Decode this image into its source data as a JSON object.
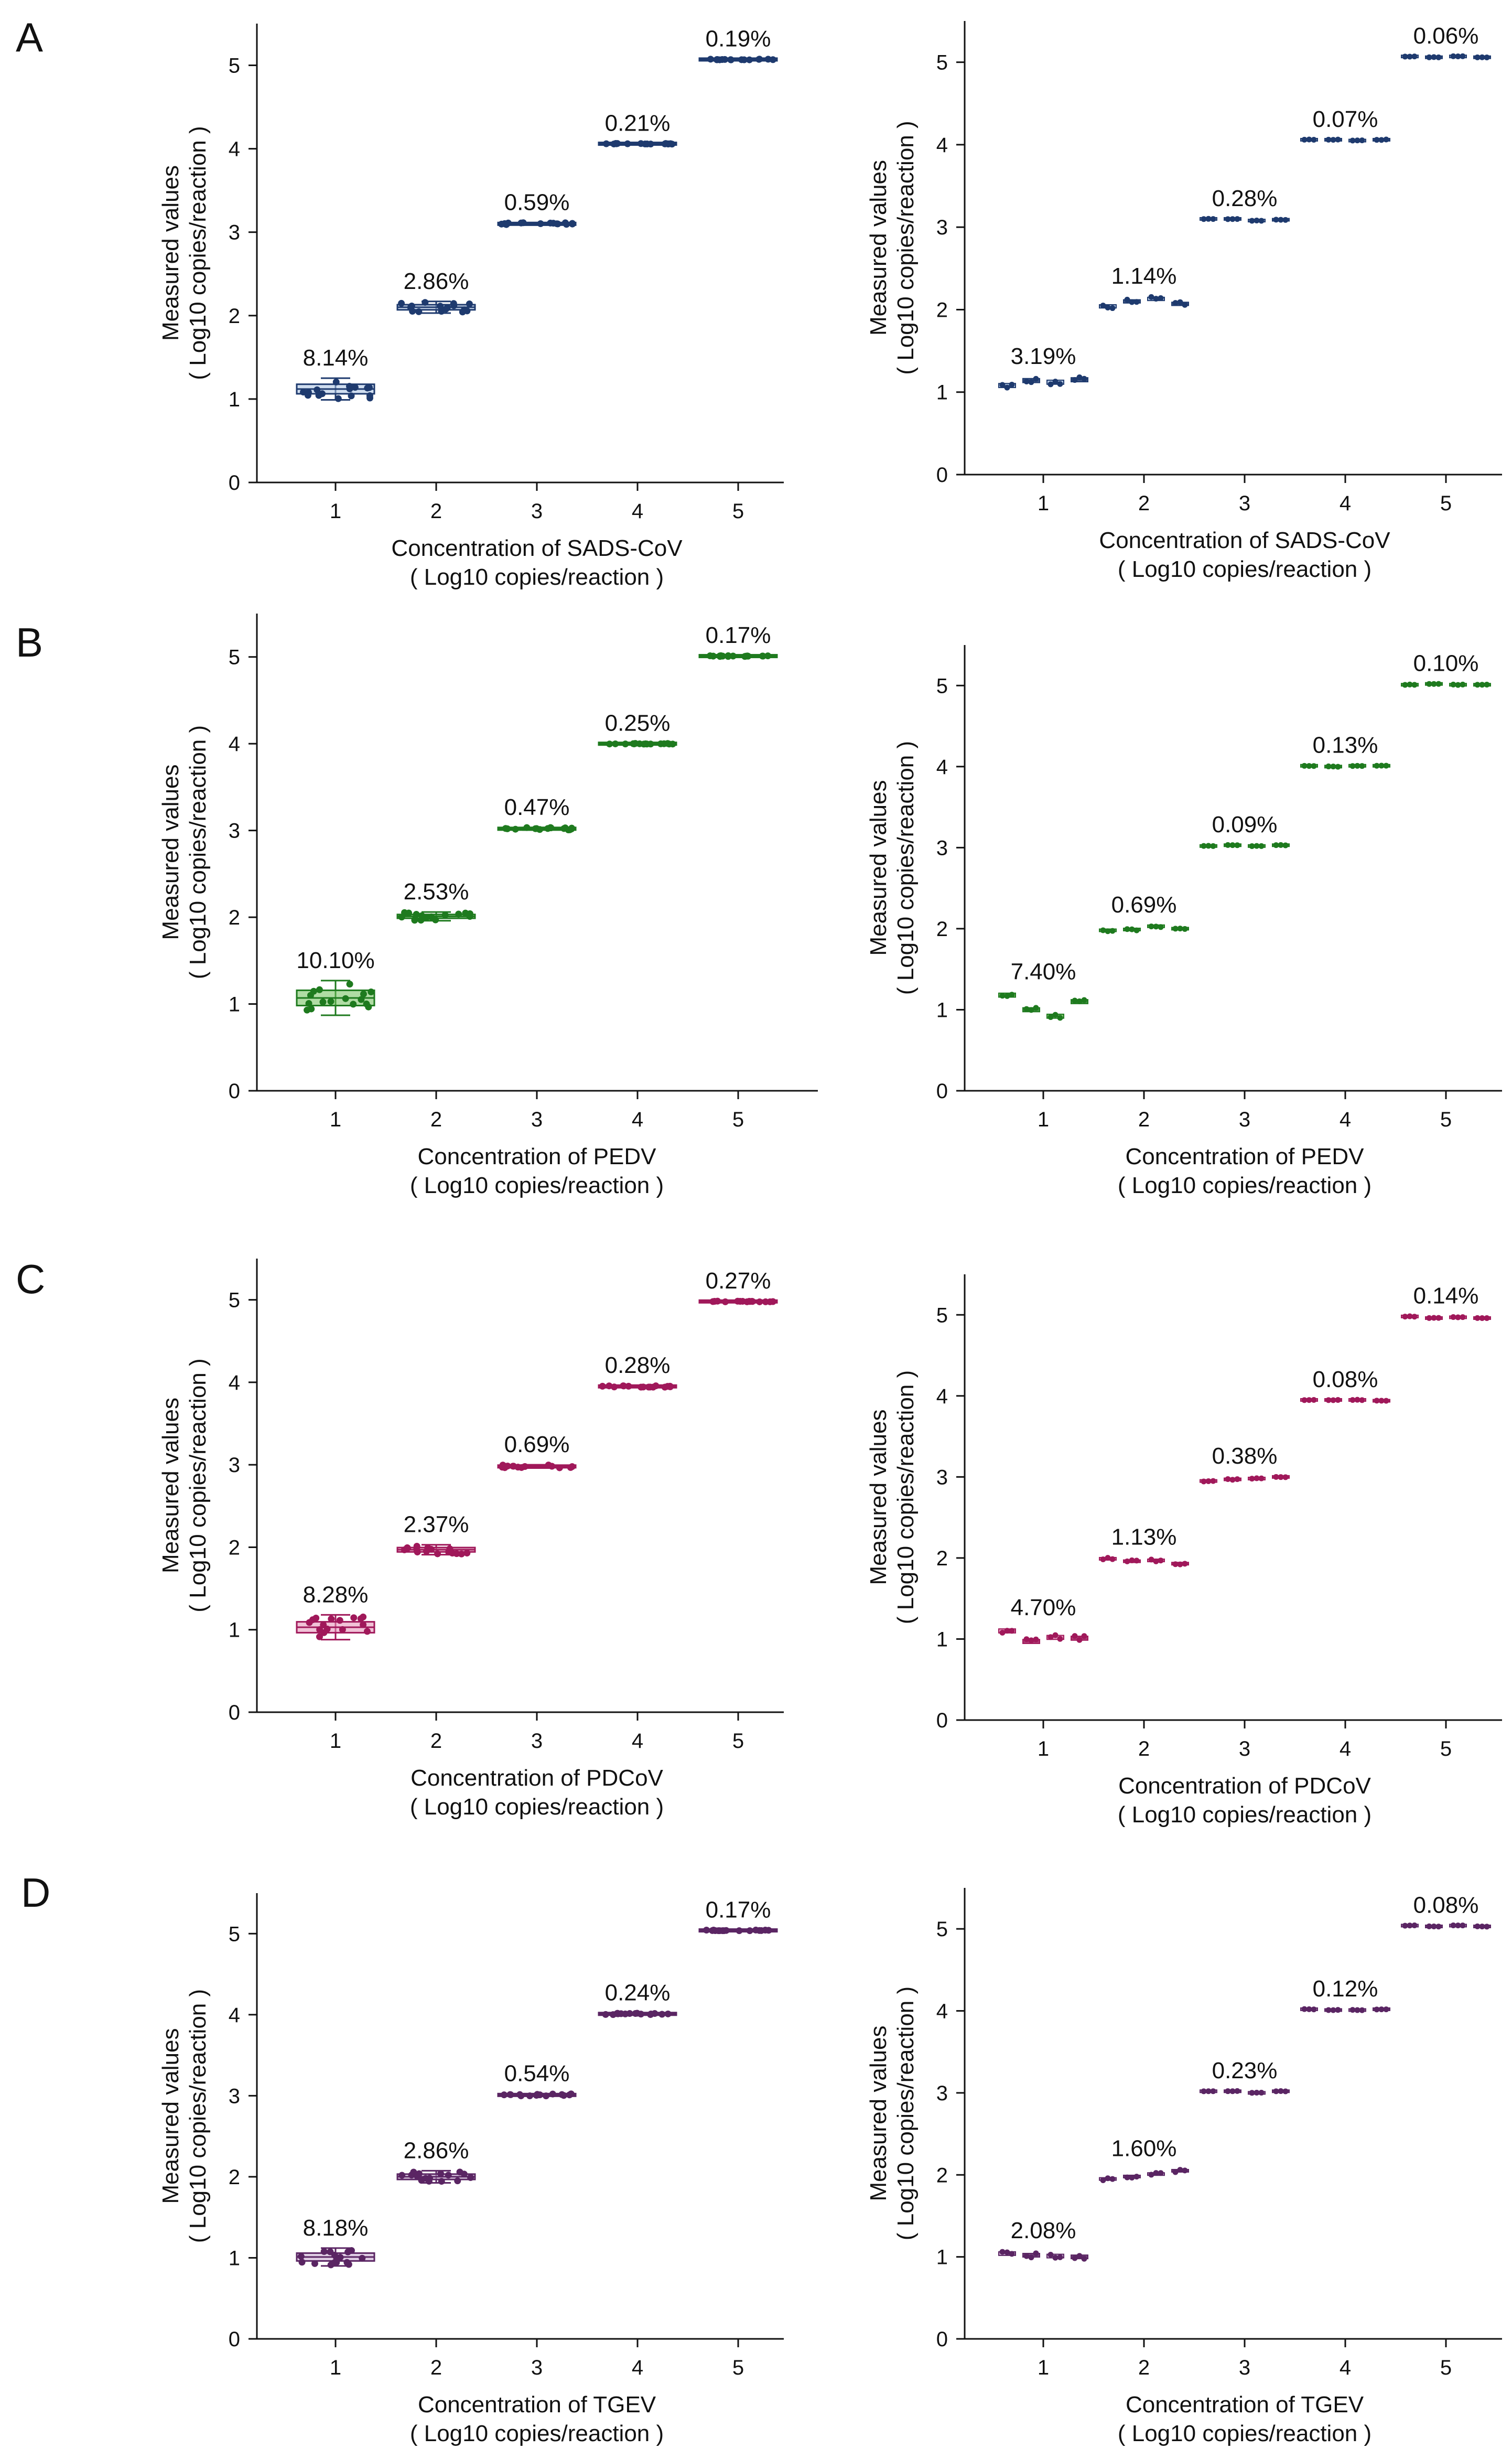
{
  "panel_letters": [
    "A",
    "B",
    "C",
    "D"
  ],
  "colors": {
    "sads": "#1e3a6e",
    "sads_light": "#a9c2e3",
    "pedv": "#1e7a1e",
    "pedv_light": "#6fbf5a",
    "pdcov": "#a0185a",
    "pdcov_light": "#e58fb7",
    "tgev": "#5a2563",
    "tgev_light": "#c6a6cf"
  },
  "chart_data": [
    {
      "id": "A-left",
      "type": "scatter",
      "panel": "A",
      "side": "left",
      "style": "intra",
      "virus": "sads",
      "x": [
        1,
        2,
        3,
        4,
        5
      ],
      "y_means": [
        1.12,
        2.1,
        3.1,
        4.06,
        5.07
      ],
      "spread": [
        0.26,
        0.14,
        0.03,
        0.01,
        0.01
      ],
      "cv_labels": [
        "8.14%",
        "2.86%",
        "0.59%",
        "0.21%",
        "0.19%"
      ],
      "ylim": [
        0,
        5.5
      ],
      "yticks": [
        0,
        1,
        2,
        3,
        4,
        5
      ],
      "xticks": [
        1,
        2,
        3,
        4,
        5
      ],
      "ylabel": [
        "Measured values",
        "( Log10 copies/reaction )"
      ],
      "xlabel": [
        "Concentration of SADS-CoV",
        "( Log10 copies/reaction )"
      ]
    },
    {
      "id": "A-right",
      "type": "scatter",
      "panel": "A",
      "side": "right",
      "style": "inter",
      "virus": "sads",
      "x": [
        1,
        2,
        3,
        4,
        5
      ],
      "group_means": [
        [
          1.08,
          1.14,
          1.12,
          1.15
        ],
        [
          2.04,
          2.1,
          2.13,
          2.07
        ],
        [
          3.1,
          3.1,
          3.08,
          3.09
        ],
        [
          4.06,
          4.06,
          4.05,
          4.06
        ],
        [
          5.07,
          5.06,
          5.07,
          5.06
        ]
      ],
      "spread": [
        0.1,
        0.08,
        0.01,
        0.01,
        0.01
      ],
      "cv_labels": [
        "3.19%",
        "1.14%",
        "0.28%",
        "0.07%",
        "0.06%"
      ],
      "ylim": [
        0,
        5.5
      ],
      "yticks": [
        0,
        1,
        2,
        3,
        4,
        5
      ],
      "xticks": [
        1,
        2,
        3,
        4,
        5
      ],
      "ylabel": [
        "Measured values",
        "( Log10 copies/reaction )"
      ],
      "xlabel": [
        "Concentration of SADS-CoV",
        "( Log10 copies/reaction )"
      ]
    },
    {
      "id": "B-left",
      "type": "scatter",
      "panel": "B",
      "side": "left",
      "style": "intra",
      "virus": "pedv",
      "x": [
        1,
        2,
        3,
        4,
        5
      ],
      "y_means": [
        1.07,
        2.01,
        3.02,
        4.0,
        5.01
      ],
      "spread": [
        0.4,
        0.1,
        0.03,
        0.01,
        0.01
      ],
      "cv_labels": [
        "10.10%",
        "2.53%",
        "0.47%",
        "0.25%",
        "0.17%"
      ],
      "ylim": [
        0,
        5.5
      ],
      "yticks": [
        0,
        1,
        2,
        3,
        4,
        5
      ],
      "xticks": [
        1,
        2,
        3,
        4,
        5
      ],
      "ylabel": [
        "Measured values",
        "( Log10 copies/reaction )"
      ],
      "xlabel": [
        "Concentration of PEDV",
        "( Log10 copies/reaction )"
      ]
    },
    {
      "id": "B-right",
      "type": "scatter",
      "panel": "B",
      "side": "right",
      "style": "inter",
      "virus": "pedv",
      "x": [
        1,
        2,
        3,
        4,
        5
      ],
      "group_means": [
        [
          1.18,
          1.0,
          0.92,
          1.1
        ],
        [
          1.98,
          1.99,
          2.03,
          2.0
        ],
        [
          3.02,
          3.03,
          3.02,
          3.03
        ],
        [
          4.01,
          4.0,
          4.01,
          4.01
        ],
        [
          5.01,
          5.02,
          5.01,
          5.01
        ]
      ],
      "spread": [
        0.1,
        0.04,
        0.01,
        0.01,
        0.01
      ],
      "cv_labels": [
        "7.40%",
        "0.69%",
        "0.09%",
        "0.13%",
        "0.10%"
      ],
      "ylim": [
        0,
        5.5
      ],
      "yticks": [
        0,
        1,
        2,
        3,
        4,
        5
      ],
      "xticks": [
        1,
        2,
        3,
        4,
        5
      ],
      "ylabel": [
        "Measured values",
        "( Log10 copies/reaction )"
      ],
      "xlabel": [
        "Concentration of PEDV",
        "( Log10 copies/reaction )"
      ]
    },
    {
      "id": "C-left",
      "type": "scatter",
      "panel": "C",
      "side": "left",
      "style": "intra",
      "virus": "pdcov",
      "x": [
        1,
        2,
        3,
        4,
        5
      ],
      "y_means": [
        1.03,
        1.97,
        2.98,
        3.95,
        4.98
      ],
      "spread": [
        0.3,
        0.12,
        0.04,
        0.02,
        0.01
      ],
      "cv_labels": [
        "8.28%",
        "2.37%",
        "0.69%",
        "0.28%",
        "0.27%"
      ],
      "ylim": [
        0,
        5.5
      ],
      "yticks": [
        0,
        1,
        2,
        3,
        4,
        5
      ],
      "xticks": [
        1,
        2,
        3,
        4,
        5
      ],
      "ylabel": [
        "Measured values",
        "( Log10 copies/reaction )"
      ],
      "xlabel": [
        "Concentration of PDCoV",
        "( Log10 copies/reaction )"
      ]
    },
    {
      "id": "C-right",
      "type": "scatter",
      "panel": "C",
      "side": "right",
      "style": "inter",
      "virus": "pdcov",
      "x": [
        1,
        2,
        3,
        4,
        5
      ],
      "group_means": [
        [
          1.1,
          0.97,
          1.02,
          1.01
        ],
        [
          1.99,
          1.96,
          1.97,
          1.93
        ],
        [
          2.95,
          2.97,
          2.98,
          3.0
        ],
        [
          3.95,
          3.95,
          3.95,
          3.94
        ],
        [
          4.98,
          4.96,
          4.97,
          4.96
        ]
      ],
      "spread": [
        0.1,
        0.05,
        0.02,
        0.01,
        0.01
      ],
      "cv_labels": [
        "4.70%",
        "1.13%",
        "0.38%",
        "0.08%",
        "0.14%"
      ],
      "ylim": [
        0,
        5.5
      ],
      "yticks": [
        0,
        1,
        2,
        3,
        4,
        5
      ],
      "xticks": [
        1,
        2,
        3,
        4,
        5
      ],
      "ylabel": [
        "Measured values",
        "( Log10 copies/reaction )"
      ],
      "xlabel": [
        "Concentration of PDCoV",
        "( Log10 copies/reaction )"
      ]
    },
    {
      "id": "D-left",
      "type": "scatter",
      "panel": "D",
      "side": "left",
      "style": "intra",
      "virus": "tgev",
      "x": [
        1,
        2,
        3,
        4,
        5
      ],
      "y_means": [
        1.01,
        2.0,
        3.01,
        4.01,
        5.04
      ],
      "spread": [
        0.22,
        0.15,
        0.03,
        0.02,
        0.01
      ],
      "cv_labels": [
        "8.18%",
        "2.86%",
        "0.54%",
        "0.24%",
        "0.17%"
      ],
      "ylim": [
        0,
        5.5
      ],
      "yticks": [
        0,
        1,
        2,
        3,
        4,
        5
      ],
      "xticks": [
        1,
        2,
        3,
        4,
        5
      ],
      "ylabel": [
        "Measured values",
        "( Log10 copies/reaction )"
      ],
      "xlabel": [
        "Concentration of TGEV",
        "( Log10 copies/reaction )"
      ]
    },
    {
      "id": "D-right",
      "type": "scatter",
      "panel": "D",
      "side": "right",
      "style": "inter",
      "virus": "tgev",
      "x": [
        1,
        2,
        3,
        4,
        5
      ],
      "group_means": [
        [
          1.04,
          1.02,
          1.01,
          1.0
        ],
        [
          1.95,
          1.98,
          2.01,
          2.05
        ],
        [
          3.02,
          3.02,
          3.0,
          3.02
        ],
        [
          4.02,
          4.01,
          4.01,
          4.02
        ],
        [
          5.04,
          5.03,
          5.04,
          5.03
        ]
      ],
      "spread": [
        0.09,
        0.06,
        0.01,
        0.01,
        0.01
      ],
      "cv_labels": [
        "2.08%",
        "1.60%",
        "0.23%",
        "0.12%",
        "0.08%"
      ],
      "ylim": [
        0,
        5.5
      ],
      "yticks": [
        0,
        1,
        2,
        3,
        4,
        5
      ],
      "xticks": [
        1,
        2,
        3,
        4,
        5
      ],
      "ylabel": [
        "Measured values",
        "( Log10 copies/reaction )"
      ],
      "xlabel": [
        "Concentration of TGEV",
        "( Log10 copies/reaction )"
      ]
    }
  ]
}
